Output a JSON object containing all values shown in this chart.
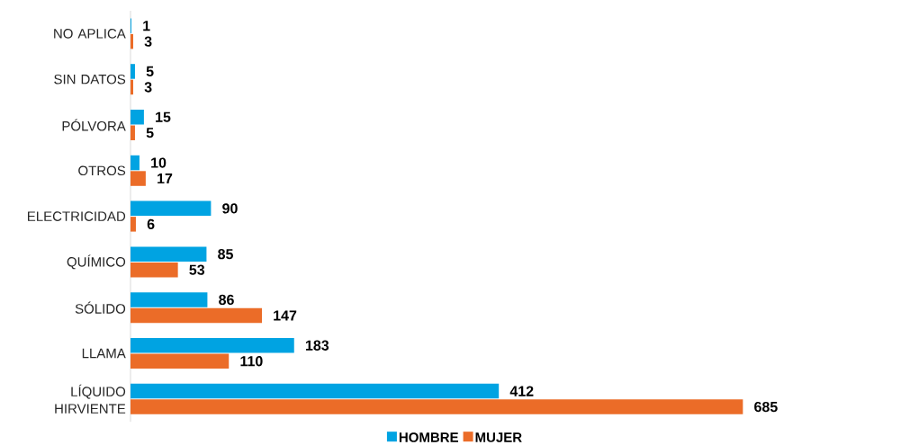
{
  "chart_data": {
    "type": "bar",
    "orientation": "horizontal",
    "data_labels": true,
    "legend": "bottom",
    "categories": [
      "NO APLICA",
      "SIN DATOS",
      "PÓLVORA",
      "OTROS",
      "ELECTRICIDAD",
      "QUÍMICO",
      "SÓLIDO",
      "LLAMA",
      "LÍQUIDO HIRVIENTE"
    ],
    "series": [
      {
        "name": "HOMBRE",
        "color": "#00a3e2",
        "values": [
          1,
          5,
          15,
          10,
          90,
          85,
          86,
          183,
          412
        ]
      },
      {
        "name": "MUJER",
        "color": "#eb6c28",
        "values": [
          3,
          3,
          5,
          17,
          6,
          53,
          147,
          110,
          685
        ]
      }
    ]
  }
}
